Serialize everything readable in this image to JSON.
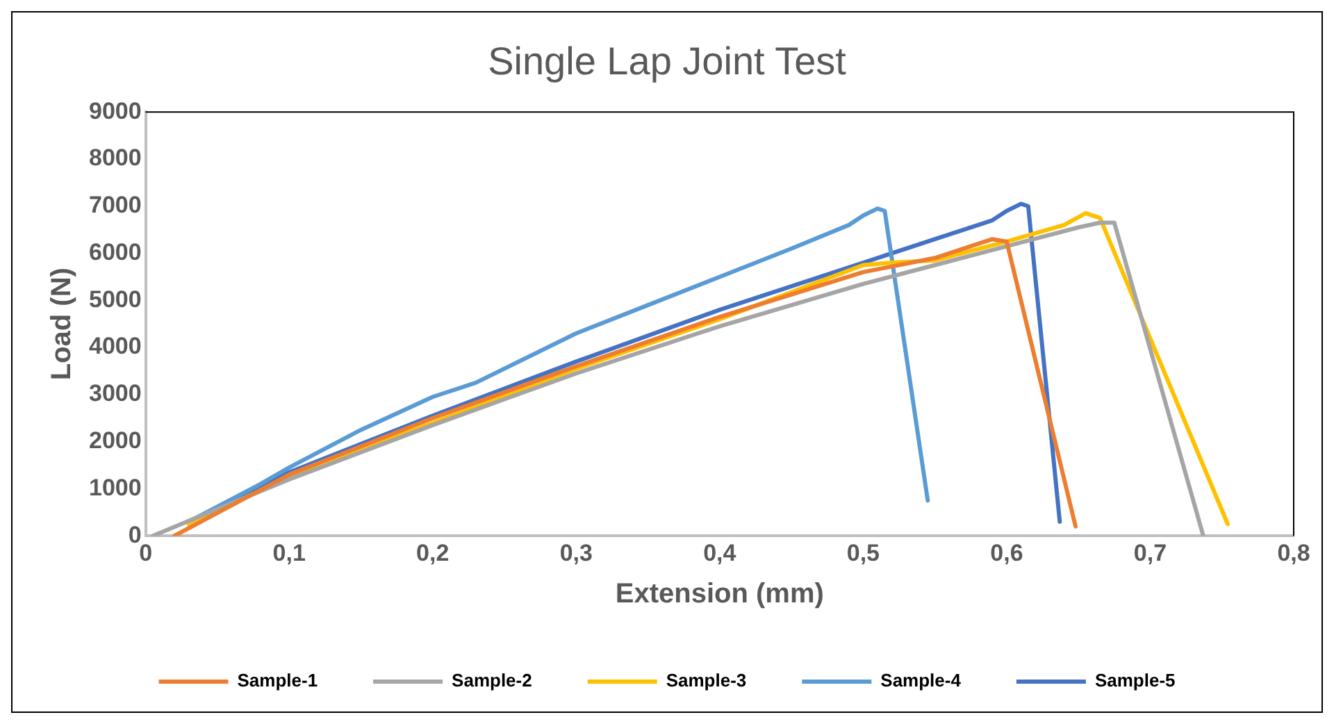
{
  "chart_data": {
    "type": "line",
    "title": "Single Lap Joint Test",
    "xlabel": "Extension (mm)",
    "ylabel": "Load (N)",
    "xlim": [
      0,
      0.8
    ],
    "xticks": [
      0,
      {
        "value": 0.1,
        "label": "0,1"
      },
      {
        "value": 0.2,
        "label": "0,2"
      },
      {
        "value": 0.3,
        "label": "0,3"
      },
      {
        "value": 0.4,
        "label": "0,4"
      },
      {
        "value": 0.5,
        "label": "0,5"
      },
      {
        "value": 0.6,
        "label": "0,6"
      },
      {
        "value": 0.7,
        "label": "0,7"
      },
      {
        "value": 0.8,
        "label": "0,8"
      }
    ],
    "ylim": [
      0,
      9000
    ],
    "yticks": [
      0,
      1000,
      2000,
      3000,
      4000,
      5000,
      6000,
      7000,
      8000,
      9000
    ],
    "grid": false,
    "legend": "bottom",
    "marker": "none",
    "line_style": "solid",
    "series": [
      {
        "name": "Sample-1",
        "color": "#ed7d31",
        "x": [
          0.02,
          0.1,
          0.2,
          0.3,
          0.4,
          0.5,
          0.55,
          0.59,
          0.6,
          0.648
        ],
        "values": [
          0,
          1300,
          2500,
          3600,
          4650,
          5600,
          5900,
          6300,
          6250,
          200
        ]
      },
      {
        "name": "Sample-2",
        "color": "#a5a5a5",
        "x": [
          0.005,
          0.1,
          0.2,
          0.3,
          0.4,
          0.5,
          0.55,
          0.6,
          0.65,
          0.665,
          0.675,
          0.737
        ],
        "values": [
          0,
          1200,
          2350,
          3450,
          4450,
          5350,
          5750,
          6150,
          6550,
          6650,
          6650,
          0
        ]
      },
      {
        "name": "Sample-3",
        "color": "#ffc000",
        "x": [
          0.03,
          0.1,
          0.2,
          0.3,
          0.4,
          0.5,
          0.52,
          0.55,
          0.6,
          0.64,
          0.655,
          0.665,
          0.754
        ],
        "values": [
          250,
          1250,
          2400,
          3550,
          4600,
          5750,
          5800,
          5850,
          6250,
          6600,
          6850,
          6750,
          250
        ]
      },
      {
        "name": "Sample-4",
        "color": "#5b9bd5",
        "x": [
          0.03,
          0.08,
          0.1,
          0.15,
          0.2,
          0.23,
          0.3,
          0.35,
          0.4,
          0.45,
          0.49,
          0.5,
          0.51,
          0.515,
          0.545
        ],
        "values": [
          300,
          1100,
          1450,
          2250,
          2950,
          3250,
          4300,
          4900,
          5500,
          6100,
          6600,
          6800,
          6950,
          6900,
          750
        ]
      },
      {
        "name": "Sample-5",
        "color": "#4472c4",
        "x": [
          0.03,
          0.1,
          0.2,
          0.3,
          0.4,
          0.5,
          0.55,
          0.59,
          0.6,
          0.61,
          0.615,
          0.637
        ],
        "values": [
          300,
          1350,
          2550,
          3700,
          4800,
          5800,
          6300,
          6700,
          6900,
          7050,
          7000,
          300
        ]
      }
    ]
  }
}
